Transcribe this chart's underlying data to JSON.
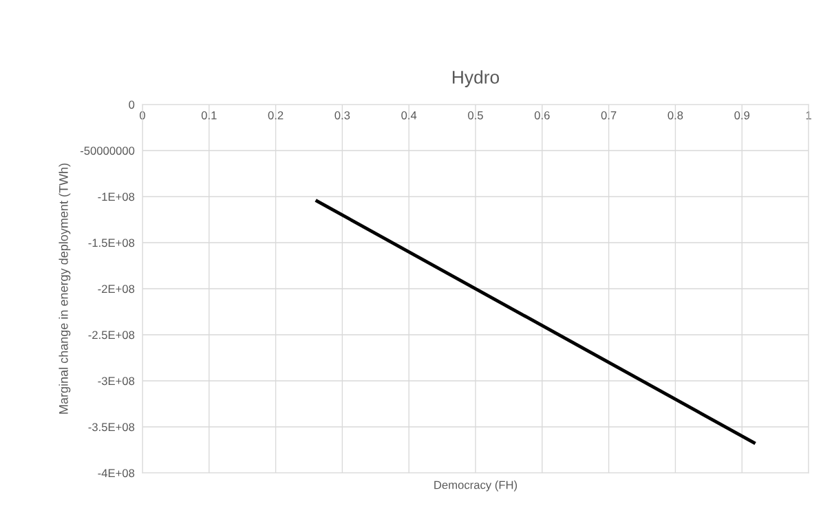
{
  "chart_data": {
    "type": "line",
    "title": "Hydro",
    "xlabel": "Democracy (FH)",
    "ylabel": "Marginal change in energy deployment (TWh)",
    "series": [
      {
        "color": "#000000",
        "x": [
          0.26,
          0.92
        ],
        "values": [
          -104000000,
          -368000000
        ]
      }
    ],
    "xlim": [
      0,
      1
    ],
    "xticks": [
      0,
      0.1,
      0.2,
      0.3,
      0.4,
      0.5,
      0.6,
      0.7,
      0.8,
      0.9,
      1
    ],
    "ylim": [
      -400000000,
      0
    ],
    "yticks": [
      0,
      -50000000,
      {
        "value": -100000000,
        "label": "-1E+08"
      },
      {
        "value": -150000000,
        "label": "-1.5E+08"
      },
      {
        "value": -200000000,
        "label": "-2E+08"
      },
      {
        "value": -250000000,
        "label": "-2.5E+08"
      },
      {
        "value": -300000000,
        "label": "-3E+08"
      },
      {
        "value": -350000000,
        "label": "-3.5E+08"
      },
      {
        "value": -400000000,
        "label": "-4E+08"
      }
    ],
    "grid": true,
    "marker": "none",
    "line_style": "solid"
  }
}
